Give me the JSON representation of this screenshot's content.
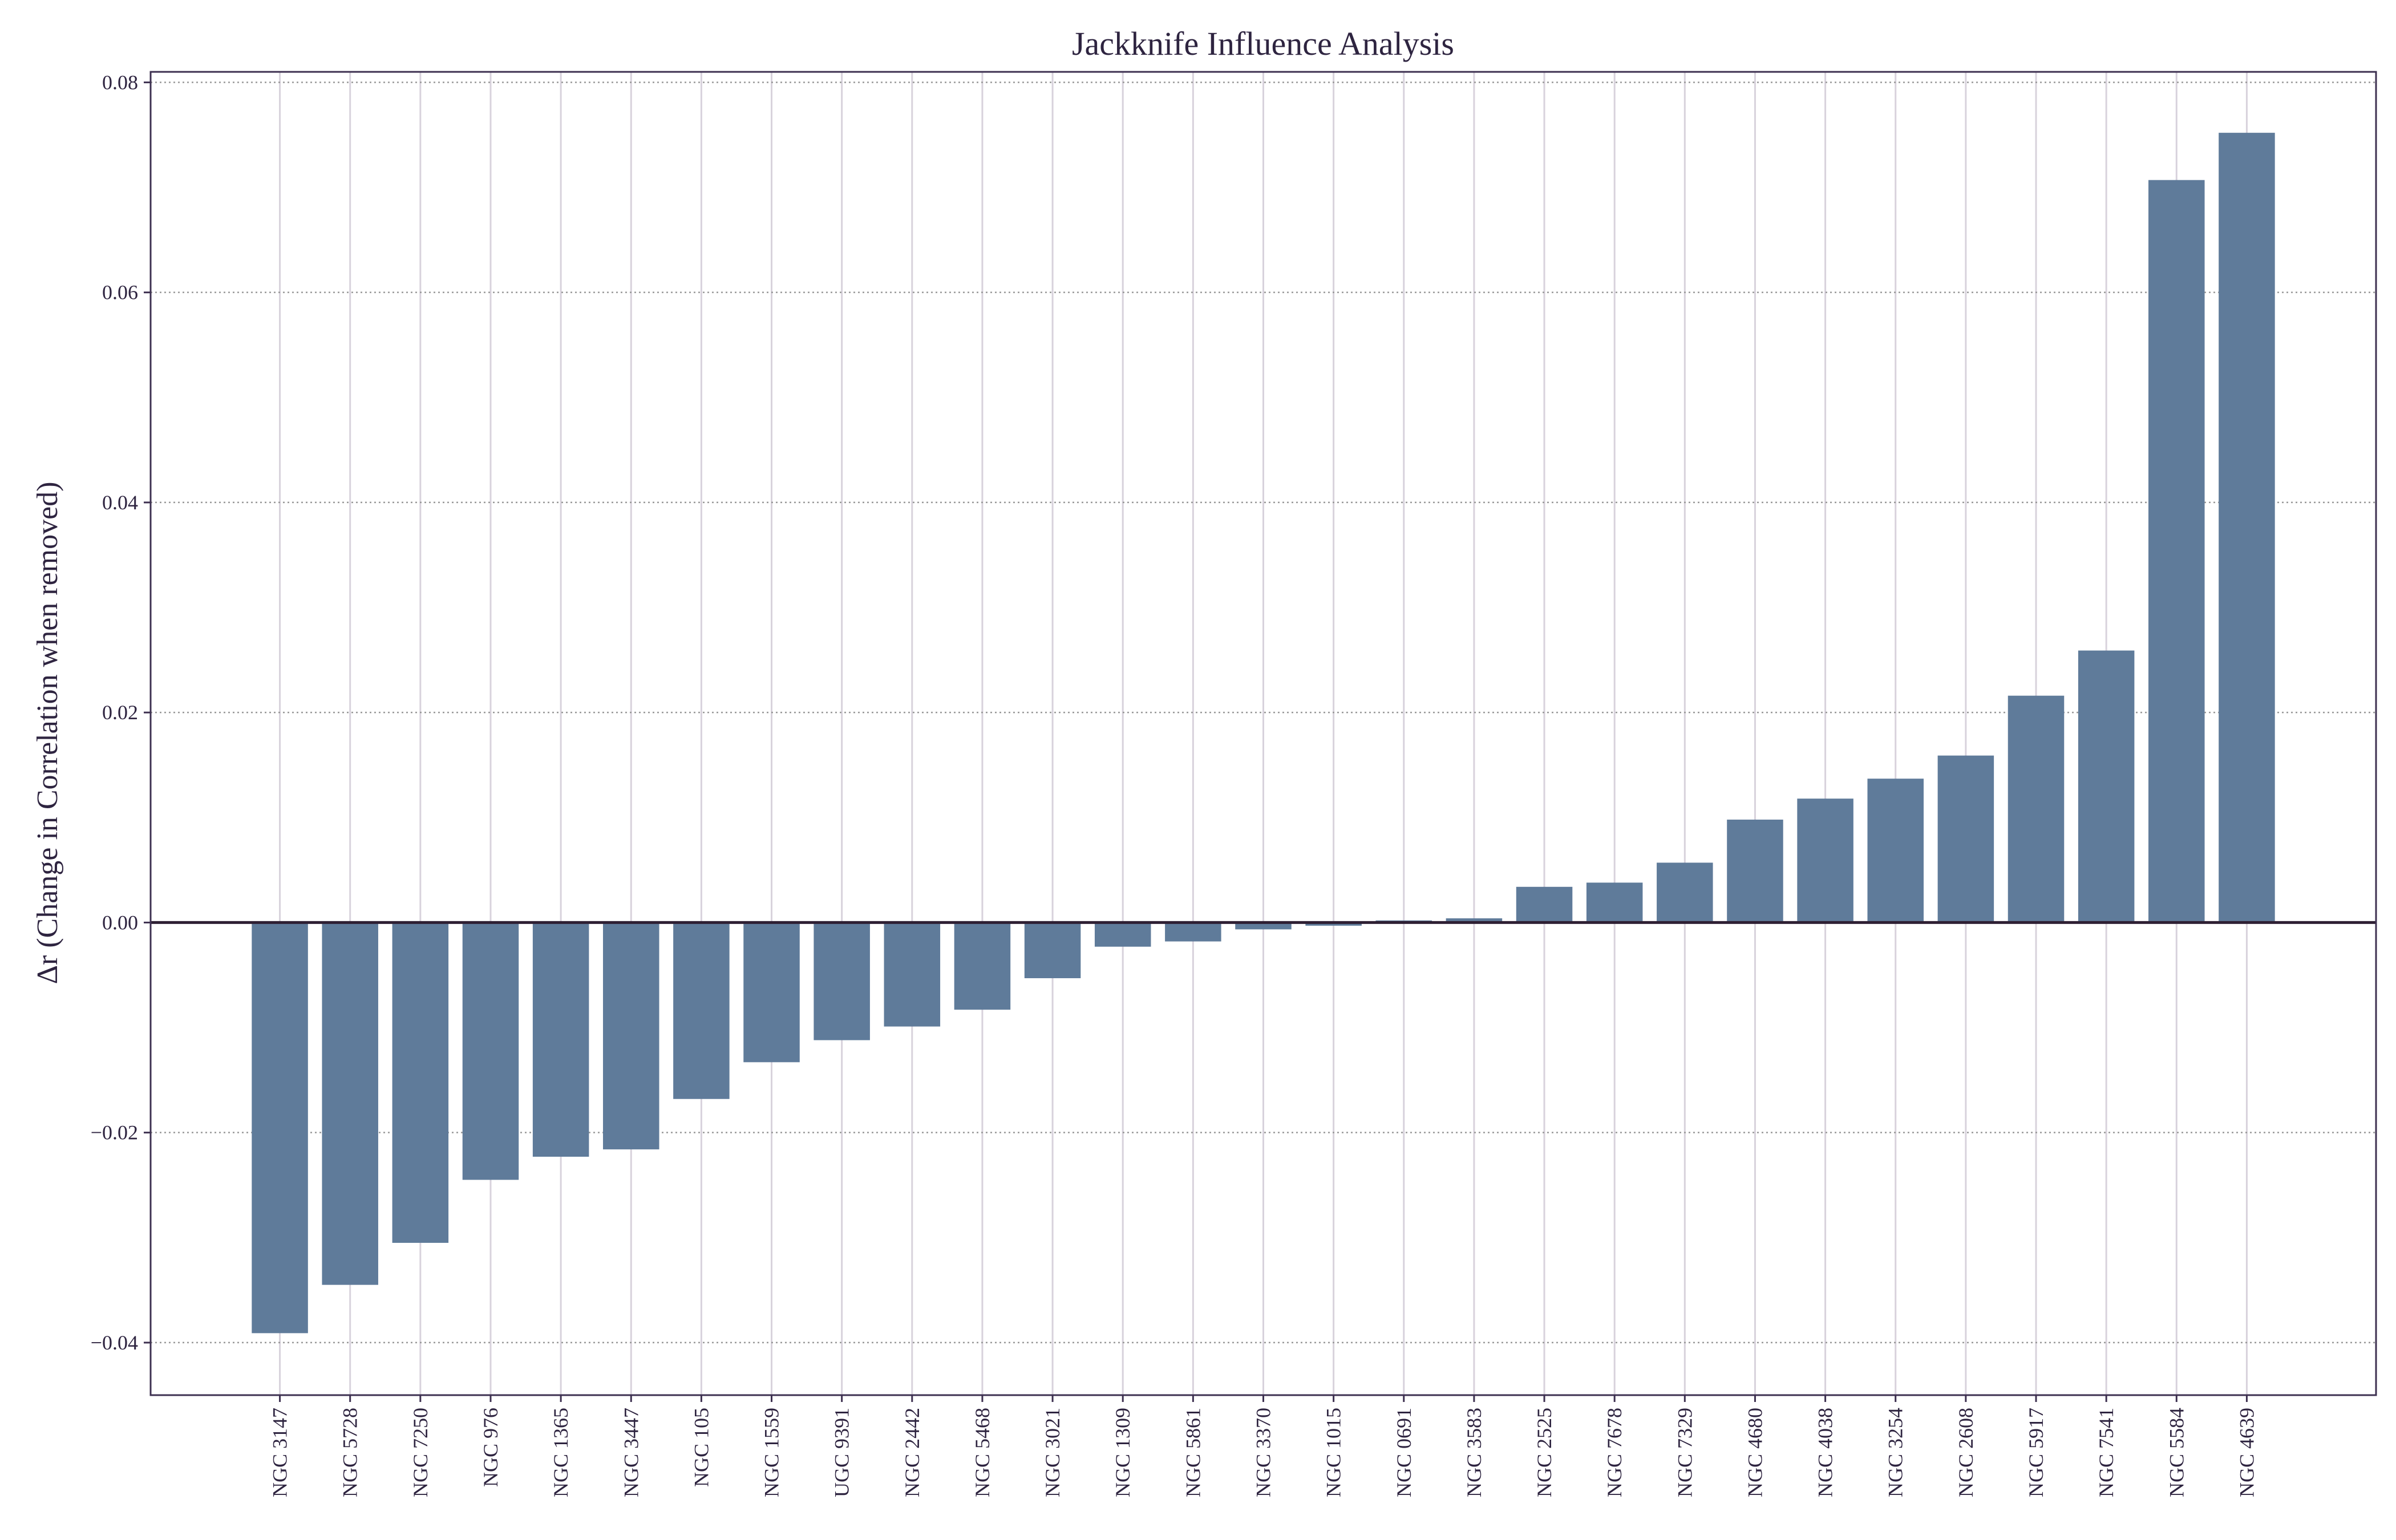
{
  "chart_data": {
    "type": "bar",
    "title": "Jackknife Influence Analysis",
    "xlabel": "",
    "ylabel": "Δr (Change in Correlation when removed)",
    "ylim": [
      -0.045,
      0.081
    ],
    "yticks": [
      -0.04,
      -0.02,
      0.0,
      0.02,
      0.04,
      0.06,
      0.08
    ],
    "ytick_labels": [
      "−0.04",
      "−0.02",
      "0.00",
      "0.02",
      "0.04",
      "0.06",
      "0.08"
    ],
    "grid": true,
    "zero_line": true,
    "categories": [
      "NGC 3147",
      "NGC 5728",
      "NGC 7250",
      "NGC 976",
      "NGC 1365",
      "NGC 3447",
      "NGC 105",
      "NGC 1559",
      "UGC 9391",
      "NGC 2442",
      "NGC 5468",
      "NGC 3021",
      "NGC 1309",
      "NGC 5861",
      "NGC 3370",
      "NGC 1015",
      "NGC 0691",
      "NGC 3583",
      "NGC 2525",
      "NGC 7678",
      "NGC 7329",
      "NGC 4680",
      "NGC 4038",
      "NGC 3254",
      "NGC 2608",
      "NGC 5917",
      "NGC 7541",
      "NGC 5584",
      "NGC 4639"
    ],
    "values": [
      -0.0391,
      -0.0345,
      -0.0305,
      -0.0245,
      -0.0223,
      -0.0216,
      -0.0168,
      -0.0133,
      -0.0112,
      -0.0099,
      -0.0083,
      -0.0053,
      -0.0023,
      -0.0018,
      -0.00065,
      -0.0003,
      0.0002,
      0.0004,
      0.0034,
      0.0038,
      0.0057,
      0.0098,
      0.0118,
      0.0137,
      0.0159,
      0.0216,
      0.0259,
      0.0707,
      0.0752
    ],
    "colors": {
      "bar": "#5f7b9a",
      "axis": "#3d3050",
      "zero_line": "#2e1f33",
      "grid": "#d8d2dc"
    }
  }
}
